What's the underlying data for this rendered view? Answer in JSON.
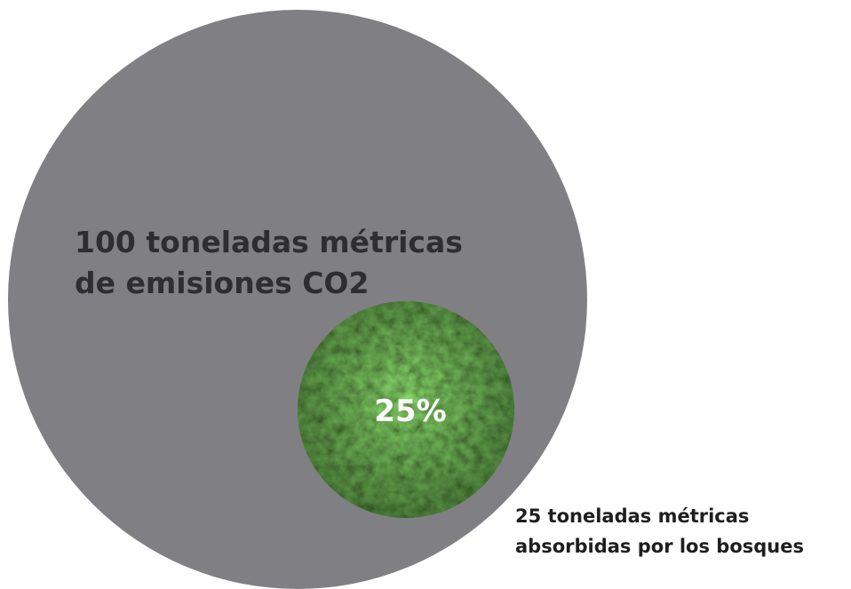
{
  "big_circle": {
    "label_lines": [
      "100 toneladas métricas",
      "de emisiones CO2"
    ]
  },
  "small_circle": {
    "percent_label": "25%",
    "caption_lines": [
      "25 toneladas métricas",
      "absorbidas por los bosques"
    ]
  }
}
